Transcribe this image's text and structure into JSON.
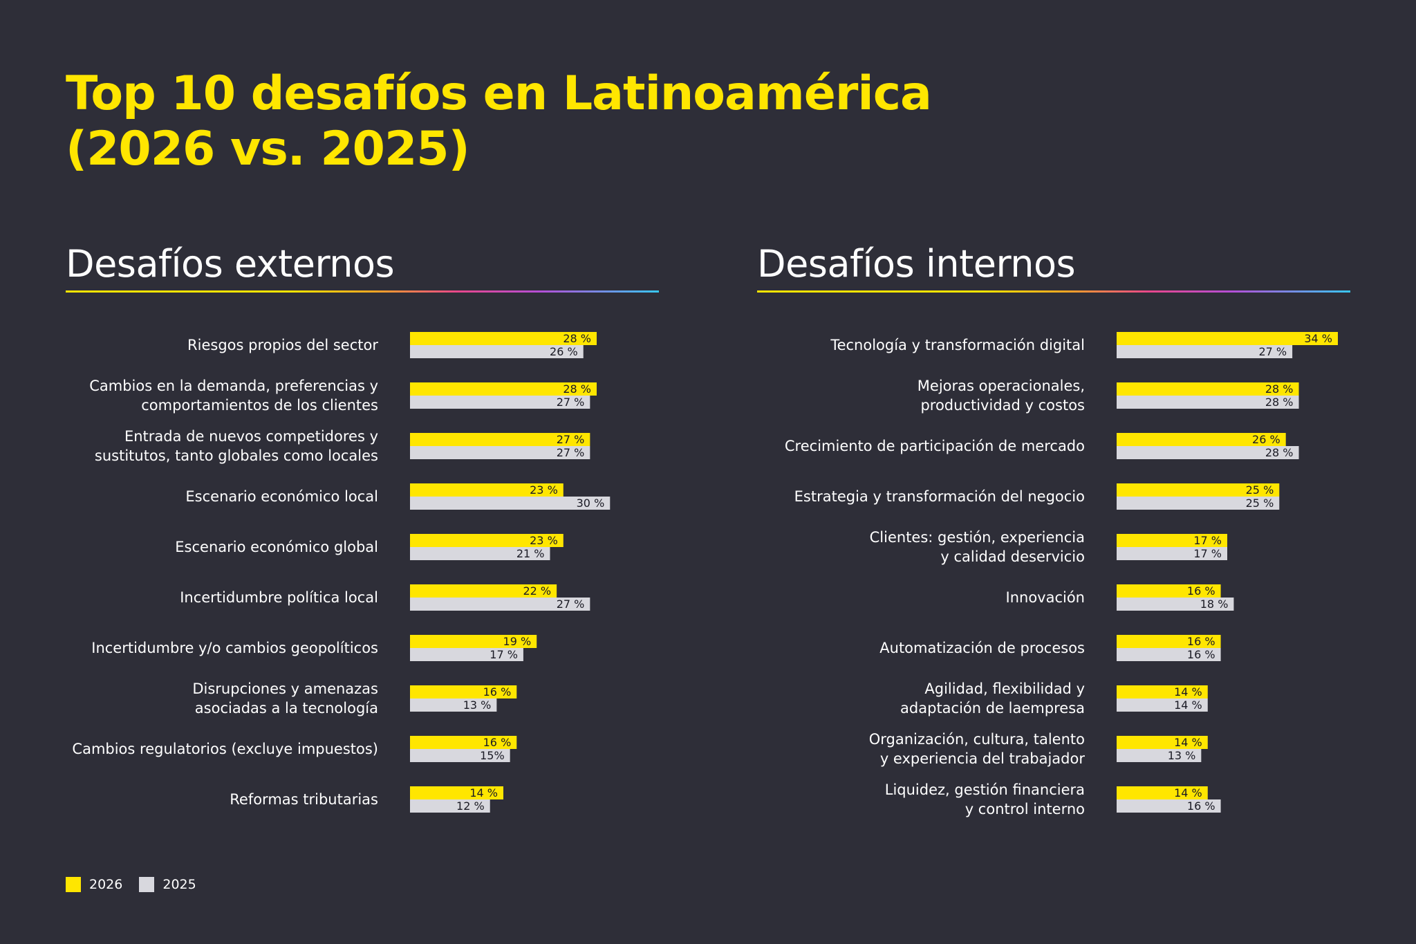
{
  "title_lines": [
    "Top 10 desafíos en Latinoamérica",
    "(2026 vs. 2025)"
  ],
  "colors": {
    "series_2026": "#ffe600",
    "series_2025": "#d8d8de",
    "background": "#2e2e38",
    "title": "#ffe600"
  },
  "legend": [
    {
      "label": "2026",
      "color": "#ffe600"
    },
    {
      "label": "2025",
      "color": "#d8d8de"
    }
  ],
  "chart_data": [
    {
      "type": "bar",
      "orientation": "horizontal",
      "title": "Desafíos externos",
      "series": [
        {
          "name": "2026"
        },
        {
          "name": "2025"
        }
      ],
      "categories": [
        [
          "Riesgos propios del sector"
        ],
        [
          "Cambios en la demanda, preferencias y",
          "comportamientos de los clientes"
        ],
        [
          "Entrada de nuevos competidores y",
          "sustitutos, tanto globales como locales"
        ],
        [
          "Escenario económico local"
        ],
        [
          "Escenario económico global"
        ],
        [
          "Incertidumbre política local"
        ],
        [
          "Incertidumbre y/o cambios geopolíticos"
        ],
        [
          "Disrupciones y amenazas",
          "asociadas a la tecnología"
        ],
        [
          "Cambios regulatorios (excluye impuestos)"
        ],
        [
          "Reformas tributarias"
        ]
      ],
      "values_2026": [
        28,
        28,
        27,
        23,
        23,
        22,
        19,
        16,
        16,
        14
      ],
      "values_2025": [
        26,
        27,
        27,
        30,
        21,
        27,
        17,
        13,
        15,
        12
      ],
      "labels_2026": [
        "28 %",
        "28 %",
        "27 %",
        "23 %",
        "23 %",
        "22 %",
        "19 %",
        "16 %",
        "16 %",
        "14 %"
      ],
      "labels_2025": [
        "26 %",
        "27 %",
        "27 %",
        "30 %",
        "21 %",
        "27 %",
        "17 %",
        "13 %",
        "15%",
        "12 %"
      ],
      "unit": "%",
      "xlim": [
        0,
        34
      ]
    },
    {
      "type": "bar",
      "orientation": "horizontal",
      "title": "Desafíos internos",
      "series": [
        {
          "name": "2026"
        },
        {
          "name": "2025"
        }
      ],
      "categories": [
        [
          "Tecnología y transformación digital"
        ],
        [
          "Mejoras operacionales,",
          "productividad y costos"
        ],
        [
          "Crecimiento de participación de mercado"
        ],
        [
          "Estrategia y transformación del negocio"
        ],
        [
          "Clientes: gestión, experiencia",
          "y calidad deservicio"
        ],
        [
          "Innovación"
        ],
        [
          "Automatización de procesos"
        ],
        [
          "Agilidad, flexibilidad y",
          "adaptación de laempresa"
        ],
        [
          "Organización, cultura, talento",
          "y experiencia del trabajador"
        ],
        [
          "Liquidez, gestión financiera",
          "y control interno"
        ]
      ],
      "values_2026": [
        34,
        28,
        26,
        25,
        17,
        16,
        16,
        14,
        14,
        14
      ],
      "values_2025": [
        27,
        28,
        28,
        25,
        17,
        18,
        16,
        14,
        13,
        16
      ],
      "labels_2026": [
        "34 %",
        "28 %",
        "26 %",
        "25 %",
        "17 %",
        "16 %",
        "16 %",
        "14 %",
        "14 %",
        "14 %"
      ],
      "labels_2025": [
        "27 %",
        "28 %",
        "28 %",
        "25 %",
        "17 %",
        "18 %",
        "16 %",
        "14 %",
        "13 %",
        "16 %"
      ],
      "unit": "%",
      "xlim": [
        0,
        34
      ]
    }
  ]
}
